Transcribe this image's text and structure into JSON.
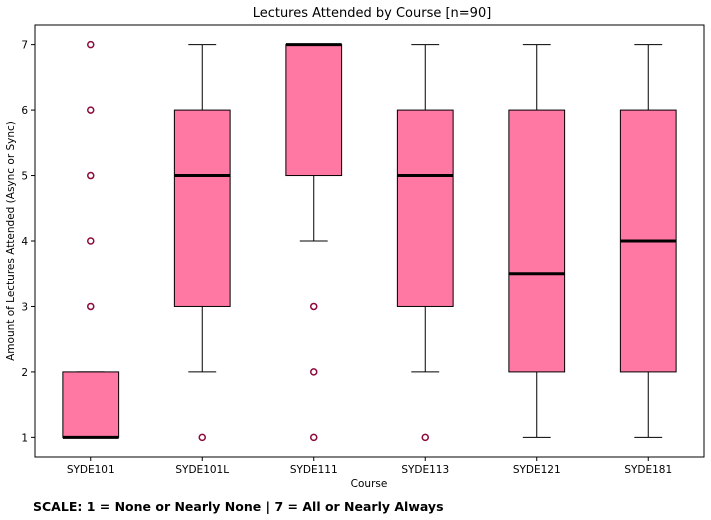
{
  "chart_data": {
    "type": "box",
    "title": "Lectures Attended by Course [n=90]",
    "xlabel": "Course",
    "ylabel": "Amount of Lectures Attended (Async or Sync)",
    "ylim": [
      0.7,
      7.3
    ],
    "yticks": [
      1,
      2,
      3,
      4,
      5,
      6,
      7
    ],
    "grid": false,
    "box_color": "#FF77A3",
    "median_color": "#000000",
    "outlier_color": "#8B0A3A",
    "categories": [
      "SYDE101",
      "SYDE101L",
      "SYDE111",
      "SYDE113",
      "SYDE121",
      "SYDE181"
    ],
    "boxes": [
      {
        "category": "SYDE101",
        "whisker_low": 1,
        "q1": 1,
        "median": 1,
        "q3": 2,
        "whisker_high": 2,
        "outliers": [
          3,
          4,
          5,
          6,
          7
        ]
      },
      {
        "category": "SYDE101L",
        "whisker_low": 2,
        "q1": 3,
        "median": 5,
        "q3": 6,
        "whisker_high": 7,
        "outliers": [
          1
        ]
      },
      {
        "category": "SYDE111",
        "whisker_low": 4,
        "q1": 5,
        "median": 7,
        "q3": 7,
        "whisker_high": 7,
        "outliers": [
          1,
          2,
          3
        ]
      },
      {
        "category": "SYDE113",
        "whisker_low": 2,
        "q1": 3,
        "median": 5,
        "q3": 6,
        "whisker_high": 7,
        "outliers": [
          1
        ]
      },
      {
        "category": "SYDE121",
        "whisker_low": 1,
        "q1": 2,
        "median": 3.5,
        "q3": 6,
        "whisker_high": 7,
        "outliers": []
      },
      {
        "category": "SYDE181",
        "whisker_low": 1,
        "q1": 2,
        "median": 4,
        "q3": 6,
        "whisker_high": 7,
        "outliers": []
      }
    ]
  },
  "footnote": "SCALE: 1 = None or Nearly None | 7 = All or Nearly Always"
}
